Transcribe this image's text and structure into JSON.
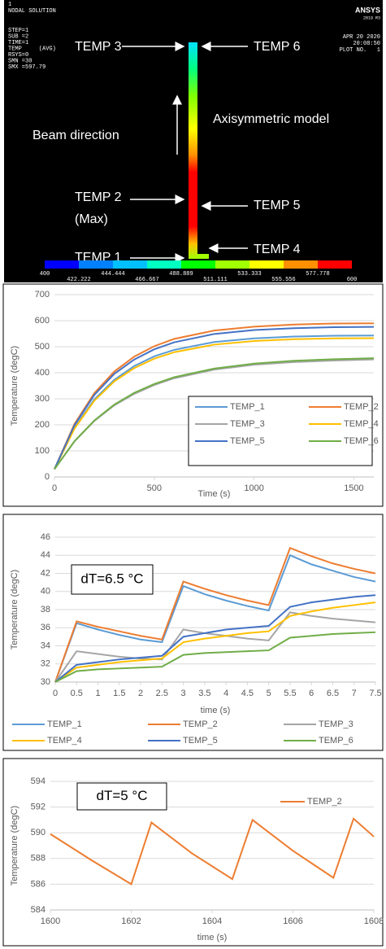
{
  "contour_plot": {
    "info": [
      "1",
      "NODAL SOLUTION",
      "STEP=1",
      "SUB =2",
      "TIME=1",
      "TEMP     (AVG)",
      "RSYS=0",
      "SMN =30",
      "SMX =597.79"
    ],
    "logo": "ANSYS",
    "version": "2019 R3",
    "date": "APR 20 2020",
    "time": "20:08:50",
    "plot_no": "PLOT NO.   1",
    "labels": {
      "temp3": "TEMP 3",
      "temp6": "TEMP 6",
      "beam": "Beam direction",
      "model": "Axisymmetric model",
      "temp2": "TEMP 2",
      "max": "(Max)",
      "temp5": "TEMP 5",
      "temp1": "TEMP 1",
      "temp4": "TEMP 4"
    },
    "legend": {
      "values": [
        400,
        422.222,
        444.444,
        466.667,
        488.889,
        511.111,
        533.333,
        555.556,
        577.778,
        600
      ],
      "colors": [
        "#0000ff",
        "#0080ff",
        "#00c0ff",
        "#00ffc0",
        "#00ff00",
        "#a0ff00",
        "#ffff00",
        "#ff9000",
        "#ff0000"
      ]
    }
  },
  "chart_data": [
    {
      "type": "line",
      "x_label": "Time (s)",
      "y_label": "Temperature (degC)",
      "x": [
        0,
        100,
        200,
        300,
        400,
        500,
        600,
        800,
        1000,
        1200,
        1400,
        1600
      ],
      "xlim": [
        0,
        1600
      ],
      "xticks": [
        0,
        500,
        1000,
        1500
      ],
      "ylim": [
        0,
        700
      ],
      "yticks": [
        0,
        100,
        200,
        300,
        400,
        500,
        600,
        700
      ],
      "grid": true,
      "legend": "lower-right",
      "series": [
        {
          "name": "TEMP_1",
          "color": "#5b9bd5",
          "values": [
            30,
            188,
            298,
            373,
            426,
            463,
            488,
            518,
            532,
            539,
            542,
            543
          ]
        },
        {
          "name": "TEMP_2",
          "color": "#ed7d31",
          "values": [
            30,
            203,
            322,
            405,
            462,
            502,
            530,
            562,
            577,
            585,
            589,
            590
          ]
        },
        {
          "name": "TEMP_3",
          "color": "#a5a5a5",
          "values": [
            30,
            136,
            215,
            275,
            319,
            353,
            379,
            412,
            431,
            441,
            447,
            451
          ]
        },
        {
          "name": "TEMP_4",
          "color": "#ffc000",
          "values": [
            30,
            185,
            293,
            367,
            418,
            454,
            479,
            508,
            522,
            529,
            532,
            533
          ]
        },
        {
          "name": "TEMP_5",
          "color": "#4472c4",
          "values": [
            30,
            198,
            315,
            396,
            451,
            490,
            517,
            549,
            564,
            571,
            575,
            576
          ]
        },
        {
          "name": "TEMP_6",
          "color": "#70ad47",
          "values": [
            30,
            137,
            217,
            278,
            323,
            357,
            383,
            416,
            435,
            446,
            452,
            456
          ]
        }
      ]
    },
    {
      "type": "line",
      "x_label": "time (s)",
      "y_label": "Temperature (degC)",
      "annotation": "dT=6.5 °C",
      "x": [
        0,
        0.5,
        1,
        1.5,
        2,
        2.5,
        3,
        3.5,
        4,
        4.5,
        5,
        5.5,
        6,
        6.5,
        7,
        7.5
      ],
      "xlim": [
        0,
        7.5
      ],
      "xticks": [
        0,
        0.5,
        1,
        1.5,
        2,
        2.5,
        3,
        3.5,
        4,
        4.5,
        5,
        5.5,
        6,
        6.5,
        7,
        7.5
      ],
      "ylim": [
        30,
        46
      ],
      "yticks": [
        30,
        32,
        34,
        36,
        38,
        40,
        42,
        44,
        46
      ],
      "grid": true,
      "legend": "bottom",
      "series": [
        {
          "name": "TEMP_1",
          "color": "#5b9bd5",
          "values": [
            30,
            36.5,
            35.8,
            35.2,
            34.7,
            34.4,
            40.6,
            39.7,
            39.0,
            38.4,
            37.9,
            44.0,
            43.0,
            42.3,
            41.6,
            41.1
          ]
        },
        {
          "name": "TEMP_2",
          "color": "#ed7d31",
          "values": [
            30,
            36.7,
            36.1,
            35.6,
            35.1,
            34.7,
            41.1,
            40.3,
            39.6,
            39.0,
            38.5,
            44.8,
            43.9,
            43.1,
            42.5,
            42.0
          ]
        },
        {
          "name": "TEMP_3",
          "color": "#a5a5a5",
          "values": [
            30,
            33.4,
            33.1,
            32.8,
            32.6,
            32.5,
            35.8,
            35.4,
            35.1,
            34.8,
            34.6,
            37.7,
            37.3,
            37.0,
            36.8,
            36.6
          ]
        },
        {
          "name": "TEMP_4",
          "color": "#ffc000",
          "values": [
            30,
            31.6,
            31.9,
            32.2,
            32.4,
            32.6,
            34.4,
            34.8,
            35.1,
            35.4,
            35.6,
            37.3,
            37.8,
            38.2,
            38.5,
            38.8
          ]
        },
        {
          "name": "TEMP_5",
          "color": "#4472c4",
          "values": [
            30,
            31.9,
            32.2,
            32.5,
            32.7,
            32.9,
            35.0,
            35.4,
            35.8,
            36.0,
            36.2,
            38.3,
            38.8,
            39.1,
            39.4,
            39.6
          ]
        },
        {
          "name": "TEMP_6",
          "color": "#70ad47",
          "values": [
            30,
            31.2,
            31.4,
            31.5,
            31.6,
            31.7,
            33.0,
            33.2,
            33.3,
            33.4,
            33.5,
            34.9,
            35.1,
            35.3,
            35.4,
            35.5
          ]
        }
      ]
    },
    {
      "type": "line",
      "x_label": "time (s)",
      "y_label": "Temperature (degC)",
      "annotation": "dT=5 °C",
      "x": [
        1600,
        1601,
        1602,
        1602.5,
        1603.5,
        1604.5,
        1605,
        1606,
        1607,
        1607.5,
        1608
      ],
      "xlim": [
        1600,
        1608
      ],
      "xticks": [
        1600,
        1602,
        1604,
        1606,
        1608
      ],
      "ylim": [
        584,
        594
      ],
      "yticks": [
        584,
        586,
        588,
        590,
        592,
        594
      ],
      "grid": true,
      "legend": "upper-right",
      "series": [
        {
          "name": "TEMP_2",
          "color": "#ed7d31",
          "values": [
            589.9,
            587.9,
            586.0,
            590.8,
            588.4,
            586.4,
            591.0,
            588.6,
            586.5,
            591.1,
            589.7
          ]
        }
      ]
    }
  ]
}
